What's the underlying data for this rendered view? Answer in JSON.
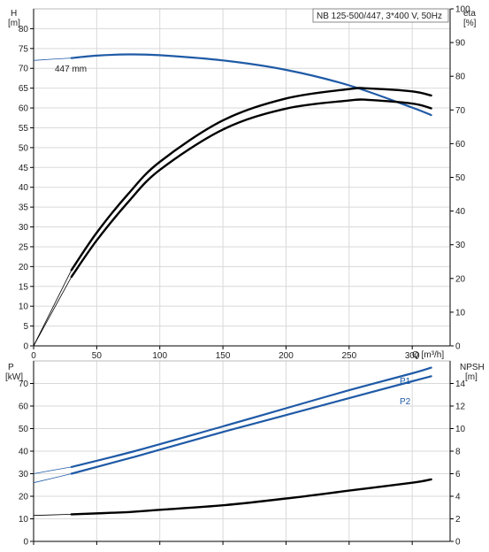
{
  "chart_data": [
    {
      "type": "line",
      "title": "NB 125-500/447, 3*400 V, 50Hz",
      "xlabel": "Q [m³/h]",
      "y_left_label": [
        "H",
        "[m]"
      ],
      "y_right_label": [
        "eta",
        "[%]"
      ],
      "xlim": [
        0,
        330
      ],
      "ylim_left": [
        0,
        85
      ],
      "ylim_right": [
        0,
        100
      ],
      "x_ticks": [
        "0",
        "50",
        "100",
        "150",
        "200",
        "250",
        "300"
      ],
      "y_left_ticks": [
        "0",
        "5",
        "10",
        "15",
        "20",
        "25",
        "30",
        "35",
        "40",
        "45",
        "50",
        "55",
        "60",
        "65",
        "70",
        "75",
        "80"
      ],
      "y_right_ticks": [
        "0",
        "10",
        "20",
        "30",
        "40",
        "50",
        "60",
        "70",
        "80",
        "90",
        "100"
      ],
      "grid": true,
      "annotations": [
        "447 mm"
      ],
      "series": [
        {
          "axis": "left",
          "color": "#1f5aa6",
          "x": [
            30,
            50,
            75,
            100,
            150,
            200,
            250,
            300,
            315
          ],
          "y": [
            72.6,
            73.2,
            73.5,
            73.3,
            72.0,
            69.6,
            65.7,
            60.1,
            58.2
          ],
          "extension_x": [
            0,
            30
          ],
          "extension_y": [
            72.0,
            72.6
          ]
        },
        {
          "axis": "right",
          "color": "#000000",
          "x": [
            30,
            50,
            75,
            100,
            150,
            200,
            250,
            265,
            300,
            315
          ],
          "y": [
            22.5,
            33.6,
            45.1,
            54.6,
            66.9,
            73.4,
            76.2,
            76.4,
            75.5,
            74.3
          ],
          "extension_x": [
            0,
            30
          ],
          "extension_y": [
            0,
            22.5
          ]
        },
        {
          "axis": "right",
          "color": "#000000",
          "x": [
            30,
            50,
            75,
            100,
            150,
            200,
            250,
            265,
            300,
            315
          ],
          "y": [
            20.5,
            31.3,
            42.7,
            52.2,
            64.2,
            70.4,
            72.8,
            73.0,
            71.9,
            70.5
          ],
          "extension_x": [
            0,
            30
          ],
          "extension_y": [
            0,
            20.5
          ]
        }
      ]
    },
    {
      "type": "line",
      "xlim": [
        0,
        330
      ],
      "ylim_left": [
        0,
        80
      ],
      "ylim_right": [
        0,
        16
      ],
      "y_left_label": [
        "P",
        "[kW]"
      ],
      "y_right_label": [
        "NPSH",
        "[m]"
      ],
      "y_left_ticks": [
        "0",
        "10",
        "20",
        "30",
        "40",
        "50",
        "60",
        "70"
      ],
      "y_right_ticks": [
        "0",
        "2",
        "4",
        "6",
        "8",
        "10",
        "12",
        "14"
      ],
      "grid": true,
      "series": [
        {
          "name": "P1",
          "axis": "left",
          "color": "#1f5aa6",
          "x": [
            30,
            80,
            150,
            200,
            250,
            300,
            315
          ],
          "y": [
            33.0,
            40.0,
            51.0,
            59.0,
            67.0,
            74.5,
            77.0
          ],
          "extension_x": [
            0,
            30
          ],
          "extension_y": [
            30.0,
            33.0
          ]
        },
        {
          "name": "P2",
          "axis": "left",
          "color": "#1f5aa6",
          "x": [
            30,
            80,
            150,
            200,
            250,
            300,
            315
          ],
          "y": [
            30.0,
            37.5,
            48.5,
            56.0,
            63.5,
            71.0,
            73.2
          ],
          "extension_x": [
            0,
            30
          ],
          "extension_y": [
            26.0,
            30.0
          ]
        },
        {
          "axis": "right",
          "color": "#000000",
          "x": [
            30,
            75,
            100,
            150,
            200,
            250,
            300,
            315
          ],
          "y": [
            2.4,
            2.6,
            2.8,
            3.2,
            3.8,
            4.5,
            5.2,
            5.5
          ],
          "extension_x": [
            0,
            30
          ],
          "extension_y": [
            2.3,
            2.4
          ]
        }
      ]
    }
  ]
}
